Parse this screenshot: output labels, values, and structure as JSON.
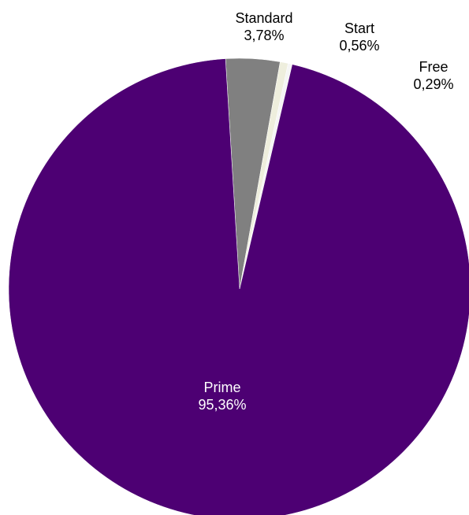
{
  "chart_data": {
    "type": "pie",
    "title": "",
    "slices": [
      {
        "name": "Standard",
        "value": 3.78,
        "label": "3,78%",
        "color": "#808080",
        "text_color": "#000000"
      },
      {
        "name": "Start",
        "value": 0.56,
        "label": "0,56%",
        "color": "#EEEEDD",
        "text_color": "#000000"
      },
      {
        "name": "Free",
        "value": 0.29,
        "label": "0,29%",
        "color": "#F5F5F5",
        "text_color": "#000000"
      },
      {
        "name": "Prime",
        "value": 95.36,
        "label": "95,36%",
        "color": "#4D0073",
        "text_color": "#FFFFFF"
      }
    ],
    "start_angle_deg": -3.5,
    "direction": "clockwise",
    "legend": "none"
  }
}
